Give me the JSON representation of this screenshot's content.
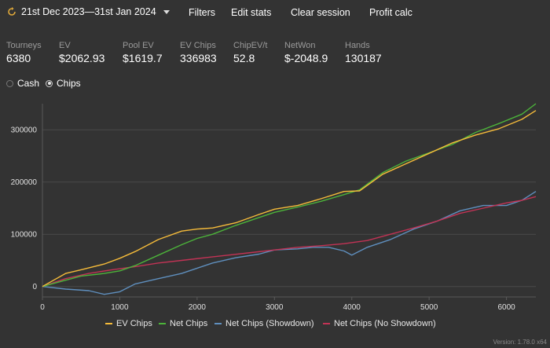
{
  "header": {
    "date_range": "21st Dec 2023—31st Jan 2024",
    "menu": {
      "filters": "Filters",
      "edit_stats": "Edit stats",
      "clear_session": "Clear session",
      "profit_calc": "Profit calc"
    }
  },
  "stats": [
    {
      "label": "Tourneys",
      "value": "6380"
    },
    {
      "label": "EV",
      "value": "$2062.93"
    },
    {
      "label": "Pool EV",
      "value": "$1619.7"
    },
    {
      "label": "EV Chips",
      "value": "336983"
    },
    {
      "label": "ChipEV/t",
      "value": "52.8"
    },
    {
      "label": "NetWon",
      "value": "$-2048.9"
    },
    {
      "label": "Hands",
      "value": "130187"
    }
  ],
  "view_toggle": {
    "cash_label": "Cash",
    "chips_label": "Chips",
    "selected": "Chips"
  },
  "version": "Version: 1.78.0 x64",
  "colors": {
    "ev_chips": "#f5bb3a",
    "net_chips": "#4cb33a",
    "showdown": "#5f8fbe",
    "no_showdown": "#c23355"
  },
  "chart_data": {
    "type": "line",
    "xlim": [
      0,
      6380
    ],
    "ylim": [
      -20000,
      350000
    ],
    "x_ticks": [
      0,
      1000,
      2000,
      3000,
      4000,
      5000,
      6000
    ],
    "y_ticks": [
      0,
      100000,
      200000,
      300000
    ],
    "x_tick_labels": [
      "0",
      "1000",
      "2000",
      "3000",
      "4000",
      "5000",
      "6000"
    ],
    "y_tick_labels": [
      "0",
      "100000",
      "200000",
      "300000"
    ],
    "grid": true,
    "legend_position": "bottom",
    "series": [
      {
        "name": "EV Chips",
        "x": [
          0,
          300,
          500,
          800,
          1000,
          1200,
          1500,
          1800,
          2000,
          2200,
          2500,
          2800,
          3000,
          3300,
          3600,
          3900,
          4100,
          4400,
          4700,
          5000,
          5300,
          5600,
          5900,
          6200,
          6380
        ],
        "y": [
          0,
          25000,
          32000,
          43000,
          54000,
          67000,
          90000,
          106000,
          110000,
          112000,
          122000,
          138000,
          148000,
          155000,
          168000,
          182000,
          183000,
          215000,
          235000,
          255000,
          275000,
          290000,
          302000,
          320000,
          336983
        ]
      },
      {
        "name": "Net Chips",
        "x": [
          0,
          300,
          500,
          800,
          1000,
          1200,
          1500,
          1800,
          2000,
          2200,
          2500,
          2800,
          3000,
          3300,
          3600,
          3900,
          4100,
          4400,
          4700,
          5000,
          5300,
          5600,
          5900,
          6200,
          6380
        ],
        "y": [
          0,
          12000,
          20000,
          25000,
          30000,
          40000,
          60000,
          80000,
          92000,
          100000,
          117000,
          132000,
          142000,
          152000,
          163000,
          176000,
          185000,
          218000,
          240000,
          256000,
          272000,
          295000,
          312000,
          330000,
          350000
        ]
      },
      {
        "name": "Net Chips (Showdown)",
        "x": [
          0,
          300,
          600,
          800,
          1000,
          1200,
          1500,
          1800,
          2000,
          2200,
          2500,
          2800,
          3000,
          3300,
          3500,
          3700,
          3900,
          4000,
          4200,
          4500,
          4800,
          5100,
          5400,
          5700,
          6000,
          6200,
          6380
        ],
        "y": [
          0,
          -5000,
          -8000,
          -15000,
          -10000,
          5000,
          15000,
          25000,
          35000,
          45000,
          55000,
          62000,
          70000,
          72000,
          75000,
          75000,
          68000,
          60000,
          75000,
          90000,
          110000,
          125000,
          145000,
          155000,
          155000,
          165000,
          182000
        ]
      },
      {
        "name": "Net Chips (No Showdown)",
        "x": [
          0,
          300,
          600,
          900,
          1200,
          1500,
          1800,
          2100,
          2400,
          2700,
          3000,
          3300,
          3600,
          3900,
          4200,
          4500,
          4800,
          5100,
          5400,
          5700,
          6000,
          6200,
          6380
        ],
        "y": [
          0,
          15000,
          25000,
          32000,
          38000,
          45000,
          50000,
          55000,
          60000,
          65000,
          70000,
          75000,
          78000,
          82000,
          88000,
          100000,
          112000,
          125000,
          140000,
          150000,
          160000,
          165000,
          172000
        ]
      }
    ]
  }
}
